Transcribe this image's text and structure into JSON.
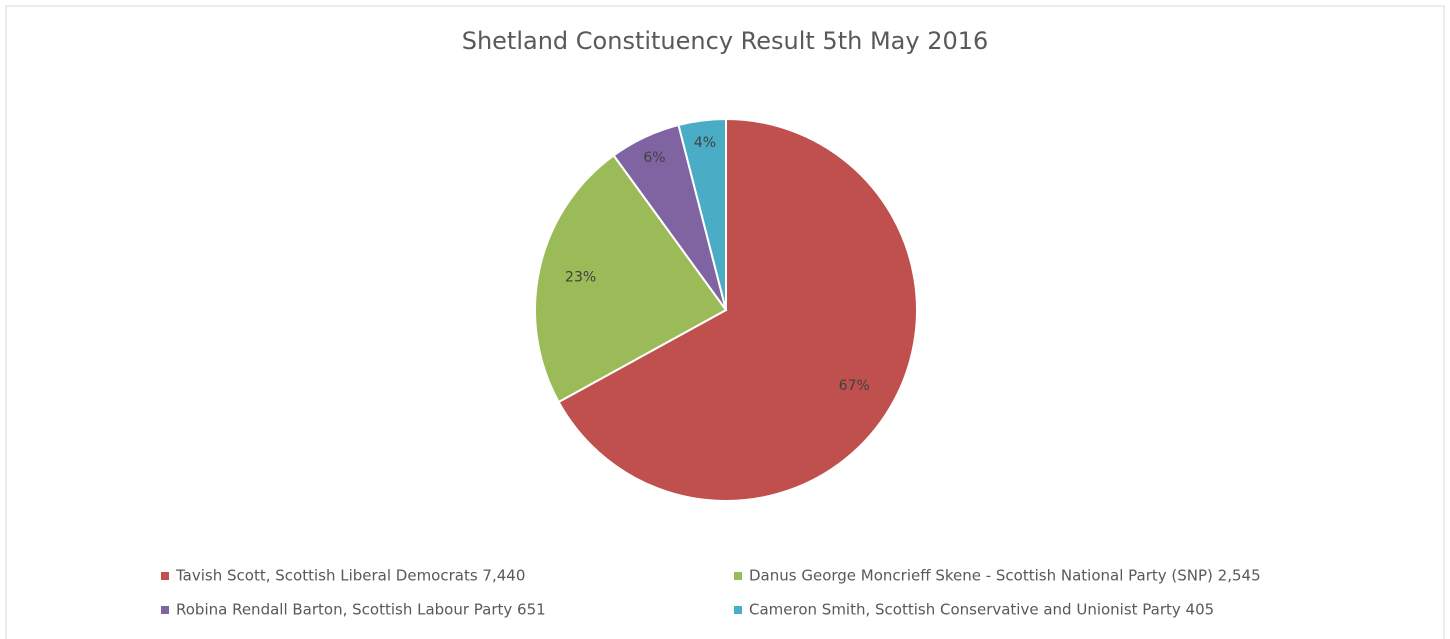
{
  "chart_data": {
    "type": "pie",
    "title": "Shetland Constituency Result 5th May 2016",
    "categories": [
      "Tavish Scott, Scottish Liberal Democrats 7,440",
      "Danus George Moncrieff Skene - Scottish National Party (SNP) 2,545",
      "Robina Rendall Barton, Scottish Labour Party 651",
      "Cameron Smith, Scottish Conservative and Unionist Party 405"
    ],
    "values": [
      67,
      23,
      6,
      4
    ],
    "value_labels": [
      "67%",
      "23%",
      "6%",
      "4%"
    ],
    "colors": [
      "#c0504d",
      "#9bbb59",
      "#8064a2",
      "#4bacc6"
    ],
    "legend": "bottom"
  }
}
